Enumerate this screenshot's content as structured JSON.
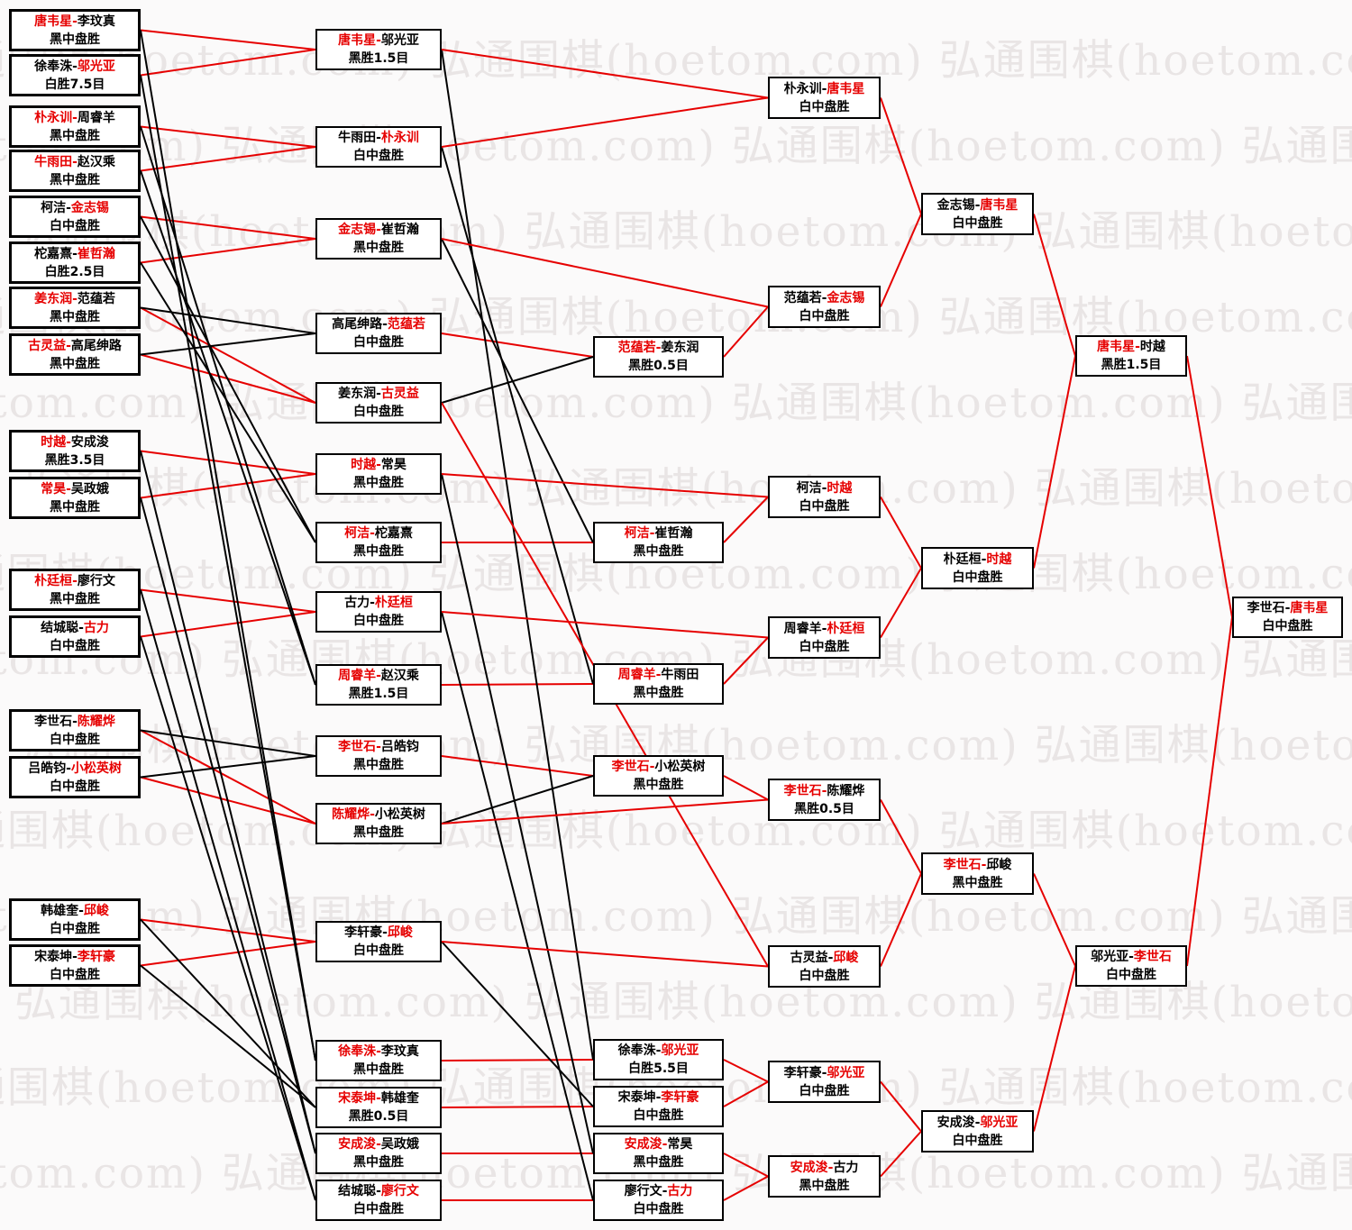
{
  "watermark": {
    "text": "弘通围棋(hoetom.com)",
    "color": "#e9e5e5"
  },
  "colors": {
    "winner_text": "#e60000",
    "loser_text": "#000000",
    "win_line": "#e60000",
    "drop_line": "#000000",
    "box_border": "#000000"
  },
  "matches": {
    "A1": {
      "p1": "唐韦星",
      "p2": "李玟真",
      "winner": 1,
      "result": "黑中盘胜"
    },
    "A2": {
      "p1": "徐奉洙",
      "p2": "邬光亚",
      "winner": 2,
      "result": "白胜7.5目"
    },
    "A3": {
      "p1": "朴永训",
      "p2": "周睿羊",
      "winner": 1,
      "result": "黑中盘胜"
    },
    "A4": {
      "p1": "牛雨田",
      "p2": "赵汉乘",
      "winner": 1,
      "result": "黑中盘胜"
    },
    "A5": {
      "p1": "柯洁",
      "p2": "金志锡",
      "winner": 2,
      "result": "白中盘胜"
    },
    "A6": {
      "p1": "柁嘉熹",
      "p2": "崔哲瀚",
      "winner": 2,
      "result": "白胜2.5目"
    },
    "A7": {
      "p1": "姜东润",
      "p2": "范蕴若",
      "winner": 1,
      "result": "黑中盘胜"
    },
    "A8": {
      "p1": "古灵益",
      "p2": "高尾绅路",
      "winner": 1,
      "result": "黑中盘胜"
    },
    "A9": {
      "p1": "时越",
      "p2": "安成浚",
      "winner": 1,
      "result": "黑胜3.5目"
    },
    "A10": {
      "p1": "常昊",
      "p2": "吴政娥",
      "winner": 1,
      "result": "黑中盘胜"
    },
    "A11": {
      "p1": "朴廷桓",
      "p2": "廖行文",
      "winner": 1,
      "result": "黑中盘胜"
    },
    "A12": {
      "p1": "结城聪",
      "p2": "古力",
      "winner": 2,
      "result": "白中盘胜"
    },
    "A13": {
      "p1": "李世石",
      "p2": "陈耀烨",
      "winner": 2,
      "result": "白中盘胜"
    },
    "A14": {
      "p1": "吕皓钧",
      "p2": "小松英树",
      "winner": 2,
      "result": "白中盘胜"
    },
    "A15": {
      "p1": "韩雄奎",
      "p2": "邱峻",
      "winner": 2,
      "result": "白中盘胜"
    },
    "A16": {
      "p1": "宋泰坤",
      "p2": "李轩豪",
      "winner": 2,
      "result": "白中盘胜"
    },
    "B1": {
      "p1": "唐韦星",
      "p2": "邬光亚",
      "winner": 1,
      "result": "黑胜1.5目"
    },
    "B2": {
      "p1": "牛雨田",
      "p2": "朴永训",
      "winner": 2,
      "result": "白中盘胜"
    },
    "B3": {
      "p1": "金志锡",
      "p2": "崔哲瀚",
      "winner": 1,
      "result": "黑中盘胜"
    },
    "B4": {
      "p1": "高尾绅路",
      "p2": "范蕴若",
      "winner": 2,
      "result": "白中盘胜"
    },
    "B5": {
      "p1": "姜东润",
      "p2": "古灵益",
      "winner": 2,
      "result": "白中盘胜"
    },
    "B6": {
      "p1": "时越",
      "p2": "常昊",
      "winner": 1,
      "result": "黑中盘胜"
    },
    "B7": {
      "p1": "柯洁",
      "p2": "柁嘉熹",
      "winner": 1,
      "result": "黑中盘胜"
    },
    "B8": {
      "p1": "古力",
      "p2": "朴廷桓",
      "winner": 2,
      "result": "白中盘胜"
    },
    "B9": {
      "p1": "周睿羊",
      "p2": "赵汉乘",
      "winner": 1,
      "result": "黑胜1.5目"
    },
    "B10": {
      "p1": "李世石",
      "p2": "吕皓钧",
      "winner": 1,
      "result": "黑中盘胜"
    },
    "B11": {
      "p1": "陈耀烨",
      "p2": "小松英树",
      "winner": 1,
      "result": "黑中盘胜"
    },
    "B12": {
      "p1": "李轩豪",
      "p2": "邱峻",
      "winner": 2,
      "result": "白中盘胜"
    },
    "B13": {
      "p1": "徐奉洙",
      "p2": "李玟真",
      "winner": 1,
      "result": "黑中盘胜"
    },
    "B14": {
      "p1": "宋泰坤",
      "p2": "韩雄奎",
      "winner": 1,
      "result": "黑胜0.5目"
    },
    "B15": {
      "p1": "安成浚",
      "p2": "吴政娥",
      "winner": 1,
      "result": "黑中盘胜"
    },
    "B16": {
      "p1": "结城聪",
      "p2": "廖行文",
      "winner": 2,
      "result": "白中盘胜"
    },
    "C1": {
      "p1": "范蕴若",
      "p2": "姜东润",
      "winner": 1,
      "result": "黑胜0.5目"
    },
    "C2": {
      "p1": "柯洁",
      "p2": "崔哲瀚",
      "winner": 1,
      "result": "黑中盘胜"
    },
    "C3": {
      "p1": "周睿羊",
      "p2": "牛雨田",
      "winner": 1,
      "result": "黑中盘胜"
    },
    "C4": {
      "p1": "李世石",
      "p2": "小松英树",
      "winner": 1,
      "result": "黑中盘胜"
    },
    "C5": {
      "p1": "徐奉洙",
      "p2": "邬光亚",
      "winner": 2,
      "result": "白胜5.5目"
    },
    "C6": {
      "p1": "宋泰坤",
      "p2": "李轩豪",
      "winner": 2,
      "result": "白中盘胜"
    },
    "C7": {
      "p1": "安成浚",
      "p2": "常昊",
      "winner": 1,
      "result": "黑中盘胜"
    },
    "C8": {
      "p1": "廖行文",
      "p2": "古力",
      "winner": 2,
      "result": "白中盘胜"
    },
    "D1": {
      "p1": "朴永训",
      "p2": "唐韦星",
      "winner": 2,
      "result": "白中盘胜"
    },
    "D2": {
      "p1": "范蕴若",
      "p2": "金志锡",
      "winner": 2,
      "result": "白中盘胜"
    },
    "D3": {
      "p1": "柯洁",
      "p2": "时越",
      "winner": 2,
      "result": "白中盘胜"
    },
    "D4": {
      "p1": "周睿羊",
      "p2": "朴廷桓",
      "winner": 2,
      "result": "白中盘胜"
    },
    "D5": {
      "p1": "李世石",
      "p2": "陈耀烨",
      "winner": 1,
      "result": "黑胜0.5目"
    },
    "D6": {
      "p1": "古灵益",
      "p2": "邱峻",
      "winner": 2,
      "result": "白中盘胜"
    },
    "D7": {
      "p1": "李轩豪",
      "p2": "邬光亚",
      "winner": 2,
      "result": "白中盘胜"
    },
    "D8": {
      "p1": "安成浚",
      "p2": "古力",
      "winner": 1,
      "result": "黑中盘胜"
    },
    "E1": {
      "p1": "金志锡",
      "p2": "唐韦星",
      "winner": 2,
      "result": "白中盘胜"
    },
    "E2": {
      "p1": "朴廷桓",
      "p2": "时越",
      "winner": 2,
      "result": "白中盘胜"
    },
    "E3": {
      "p1": "李世石",
      "p2": "邱峻",
      "winner": 1,
      "result": "黑中盘胜"
    },
    "E4": {
      "p1": "安成浚",
      "p2": "邬光亚",
      "winner": 2,
      "result": "白中盘胜"
    },
    "F1": {
      "p1": "唐韦星",
      "p2": "时越",
      "winner": 1,
      "result": "黑胜1.5目"
    },
    "F2": {
      "p1": "邬光亚",
      "p2": "李世石",
      "winner": 2,
      "result": "白中盘胜"
    },
    "G1": {
      "p1": "李世石",
      "p2": "唐韦星",
      "winner": 2,
      "result": "白中盘胜"
    }
  },
  "connections": [
    {
      "from": "A1",
      "to": "B1",
      "path": "winner"
    },
    {
      "from": "A2",
      "to": "B1",
      "path": "winner"
    },
    {
      "from": "A3",
      "to": "B2",
      "path": "winner"
    },
    {
      "from": "A4",
      "to": "B2",
      "path": "winner"
    },
    {
      "from": "A5",
      "to": "B3",
      "path": "winner"
    },
    {
      "from": "A6",
      "to": "B3",
      "path": "winner"
    },
    {
      "from": "A7",
      "to": "B5",
      "path": "winner"
    },
    {
      "from": "A8",
      "to": "B5",
      "path": "winner"
    },
    {
      "from": "A9",
      "to": "B6",
      "path": "winner"
    },
    {
      "from": "A10",
      "to": "B6",
      "path": "winner"
    },
    {
      "from": "A11",
      "to": "B8",
      "path": "winner"
    },
    {
      "from": "A12",
      "to": "B8",
      "path": "winner"
    },
    {
      "from": "A13",
      "to": "B11",
      "path": "winner"
    },
    {
      "from": "A14",
      "to": "B11",
      "path": "winner"
    },
    {
      "from": "A15",
      "to": "B12",
      "path": "winner"
    },
    {
      "from": "A16",
      "to": "B12",
      "path": "winner"
    },
    {
      "from": "A1",
      "to": "B13",
      "path": "loser"
    },
    {
      "from": "A2",
      "to": "B13",
      "path": "loser"
    },
    {
      "from": "A3",
      "to": "B9",
      "path": "loser"
    },
    {
      "from": "A4",
      "to": "B9",
      "path": "loser"
    },
    {
      "from": "A5",
      "to": "B7",
      "path": "loser"
    },
    {
      "from": "A6",
      "to": "B7",
      "path": "loser"
    },
    {
      "from": "A7",
      "to": "B4",
      "path": "loser"
    },
    {
      "from": "A8",
      "to": "B4",
      "path": "loser"
    },
    {
      "from": "A9",
      "to": "B15",
      "path": "loser"
    },
    {
      "from": "A10",
      "to": "B15",
      "path": "loser"
    },
    {
      "from": "A11",
      "to": "B16",
      "path": "loser"
    },
    {
      "from": "A12",
      "to": "B16",
      "path": "loser"
    },
    {
      "from": "A13",
      "to": "B10",
      "path": "loser"
    },
    {
      "from": "A14",
      "to": "B10",
      "path": "loser"
    },
    {
      "from": "A15",
      "to": "B14",
      "path": "loser"
    },
    {
      "from": "A16",
      "to": "B14",
      "path": "loser"
    },
    {
      "from": "B4",
      "to": "C1",
      "path": "winner"
    },
    {
      "from": "B5",
      "to": "C1",
      "path": "loser"
    },
    {
      "from": "B7",
      "to": "C2",
      "path": "winner"
    },
    {
      "from": "B3",
      "to": "C2",
      "path": "loser"
    },
    {
      "from": "B9",
      "to": "C3",
      "path": "winner"
    },
    {
      "from": "B2",
      "to": "C3",
      "path": "loser"
    },
    {
      "from": "B10",
      "to": "C4",
      "path": "winner"
    },
    {
      "from": "B11",
      "to": "C4",
      "path": "loser"
    },
    {
      "from": "B13",
      "to": "C5",
      "path": "winner"
    },
    {
      "from": "B1",
      "to": "C5",
      "path": "loser"
    },
    {
      "from": "B14",
      "to": "C6",
      "path": "winner"
    },
    {
      "from": "B12",
      "to": "C6",
      "path": "loser"
    },
    {
      "from": "B15",
      "to": "C7",
      "path": "winner"
    },
    {
      "from": "B6",
      "to": "C7",
      "path": "loser"
    },
    {
      "from": "B16",
      "to": "C8",
      "path": "winner"
    },
    {
      "from": "B8",
      "to": "C8",
      "path": "loser"
    },
    {
      "from": "B2",
      "to": "D1",
      "path": "winner"
    },
    {
      "from": "B1",
      "to": "D1",
      "path": "winner"
    },
    {
      "from": "C1",
      "to": "D2",
      "path": "winner"
    },
    {
      "from": "B3",
      "to": "D2",
      "path": "winner"
    },
    {
      "from": "C2",
      "to": "D3",
      "path": "winner"
    },
    {
      "from": "B6",
      "to": "D3",
      "path": "winner"
    },
    {
      "from": "C3",
      "to": "D4",
      "path": "winner"
    },
    {
      "from": "B8",
      "to": "D4",
      "path": "winner"
    },
    {
      "from": "C4",
      "to": "D5",
      "path": "winner"
    },
    {
      "from": "B11",
      "to": "D5",
      "path": "winner"
    },
    {
      "from": "B5",
      "to": "D6",
      "path": "winner"
    },
    {
      "from": "B12",
      "to": "D6",
      "path": "winner"
    },
    {
      "from": "C6",
      "to": "D7",
      "path": "winner"
    },
    {
      "from": "C5",
      "to": "D7",
      "path": "winner"
    },
    {
      "from": "C7",
      "to": "D8",
      "path": "winner"
    },
    {
      "from": "C8",
      "to": "D8",
      "path": "winner"
    },
    {
      "from": "D2",
      "to": "E1",
      "path": "winner"
    },
    {
      "from": "D1",
      "to": "E1",
      "path": "winner"
    },
    {
      "from": "D4",
      "to": "E2",
      "path": "winner"
    },
    {
      "from": "D3",
      "to": "E2",
      "path": "winner"
    },
    {
      "from": "D5",
      "to": "E3",
      "path": "winner"
    },
    {
      "from": "D6",
      "to": "E3",
      "path": "winner"
    },
    {
      "from": "D8",
      "to": "E4",
      "path": "winner"
    },
    {
      "from": "D7",
      "to": "E4",
      "path": "winner"
    },
    {
      "from": "E1",
      "to": "F1",
      "path": "winner"
    },
    {
      "from": "E2",
      "to": "F1",
      "path": "winner"
    },
    {
      "from": "E3",
      "to": "F2",
      "path": "winner"
    },
    {
      "from": "E4",
      "to": "F2",
      "path": "winner"
    },
    {
      "from": "F1",
      "to": "G1",
      "path": "winner"
    },
    {
      "from": "F2",
      "to": "G1",
      "path": "winner"
    }
  ]
}
